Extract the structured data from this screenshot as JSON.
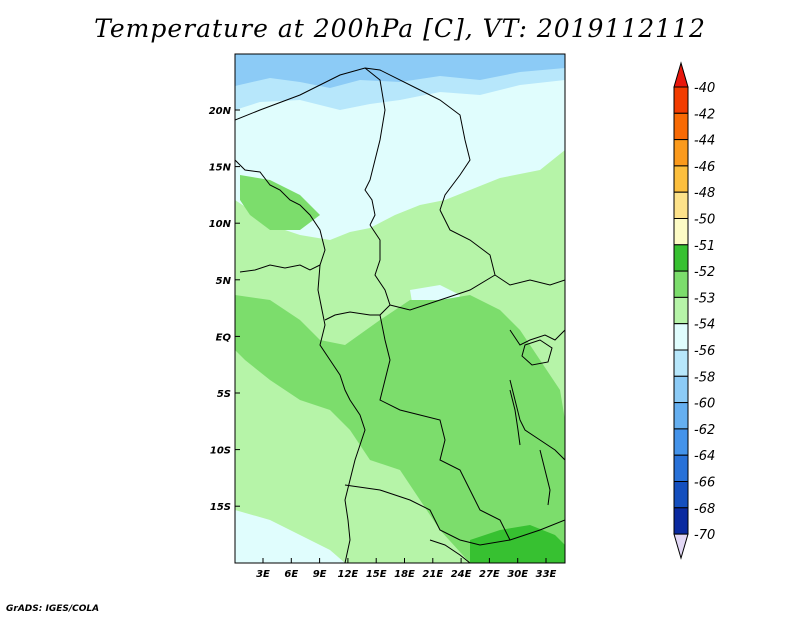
{
  "title": "Temperature at 200hPa [C], VT: 2019112112",
  "footer": "GrADS: IGES/COLA",
  "map": {
    "lon_labels": [
      "3E",
      "6E",
      "9E",
      "12E",
      "15E",
      "18E",
      "21E",
      "24E",
      "27E",
      "30E",
      "33E"
    ],
    "lat_labels": [
      "20N",
      "15N",
      "10N",
      "5N",
      "EQ",
      "5S",
      "10S",
      "15S"
    ]
  },
  "colorbar": {
    "levels": [
      {
        "label": "-40",
        "color": "#e8170c"
      },
      {
        "label": "-42",
        "color": "#f23c00"
      },
      {
        "label": "-44",
        "color": "#f86a04"
      },
      {
        "label": "-46",
        "color": "#fb9a1c"
      },
      {
        "label": "-48",
        "color": "#fcbf3e"
      },
      {
        "label": "-50",
        "color": "#fde28a"
      },
      {
        "label": "-51",
        "color": "#fdfbc5"
      },
      {
        "label": "-52",
        "color": "#37c131"
      },
      {
        "label": "-53",
        "color": "#7cdd6c"
      },
      {
        "label": "-54",
        "color": "#b6f4a8"
      },
      {
        "label": "-56",
        "color": "#e0fdfd"
      },
      {
        "label": "-58",
        "color": "#b7e7fb"
      },
      {
        "label": "-60",
        "color": "#8ccbf6"
      },
      {
        "label": "-62",
        "color": "#65aff0"
      },
      {
        "label": "-64",
        "color": "#4493ea"
      },
      {
        "label": "-66",
        "color": "#2871d8"
      },
      {
        "label": "-68",
        "color": "#144fbe"
      },
      {
        "label": "-70",
        "color": "#0a2aa0"
      }
    ],
    "low_end_color": "#0e0e60",
    "high_end_color": "#e2d8f5"
  },
  "colors": {
    "field_light_green": "#b6f4a8",
    "field_mid_green": "#7cdd6c",
    "field_dark_green": "#37c131",
    "field_pale_cyan": "#e0fdfd",
    "field_light_blue": "#b7e7fb",
    "field_blue": "#8ccbf6"
  }
}
